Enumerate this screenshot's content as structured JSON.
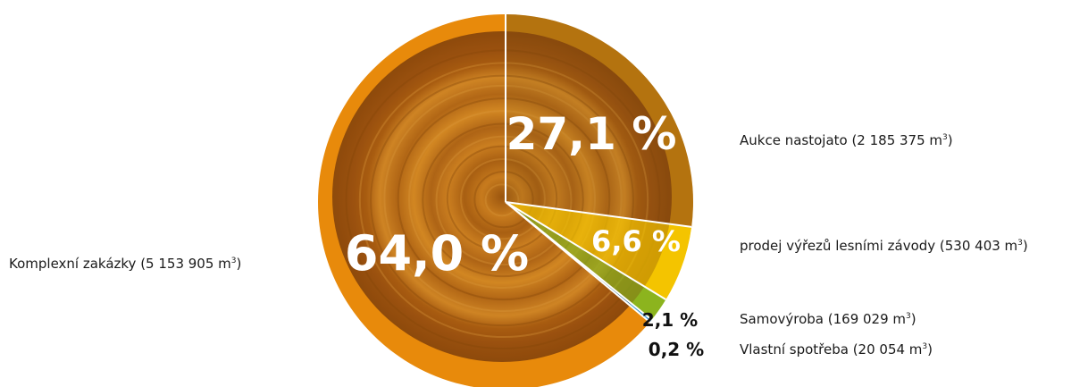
{
  "chart_data": {
    "type": "pie",
    "title": "",
    "slices": [
      {
        "label": "Aukce nastojato (2 185 375 m³)",
        "value": 2185375,
        "percent_label": "27,1 %",
        "color": "#b5730f"
      },
      {
        "label": "prodej výřezů lesními závody (530 403 m³)",
        "value": 530403,
        "percent_label": "6,6 %",
        "color": "#f4c400"
      },
      {
        "label": "Samovýroba (169 029 m³)",
        "value": 169029,
        "percent_label": "2,1 %",
        "color": "#8cb41e"
      },
      {
        "label": "Vlastní spotřeba (20 054 m³)",
        "value": 20054,
        "percent_label": "0,2 %",
        "color": "#1f8cd0"
      },
      {
        "label": "Komplexní zakázky (5 153 905 m³)",
        "value": 5153905,
        "percent_label": "64,0 %",
        "color": "#e88a0c"
      }
    ],
    "legend_placement": "around pie (right and left)"
  }
}
